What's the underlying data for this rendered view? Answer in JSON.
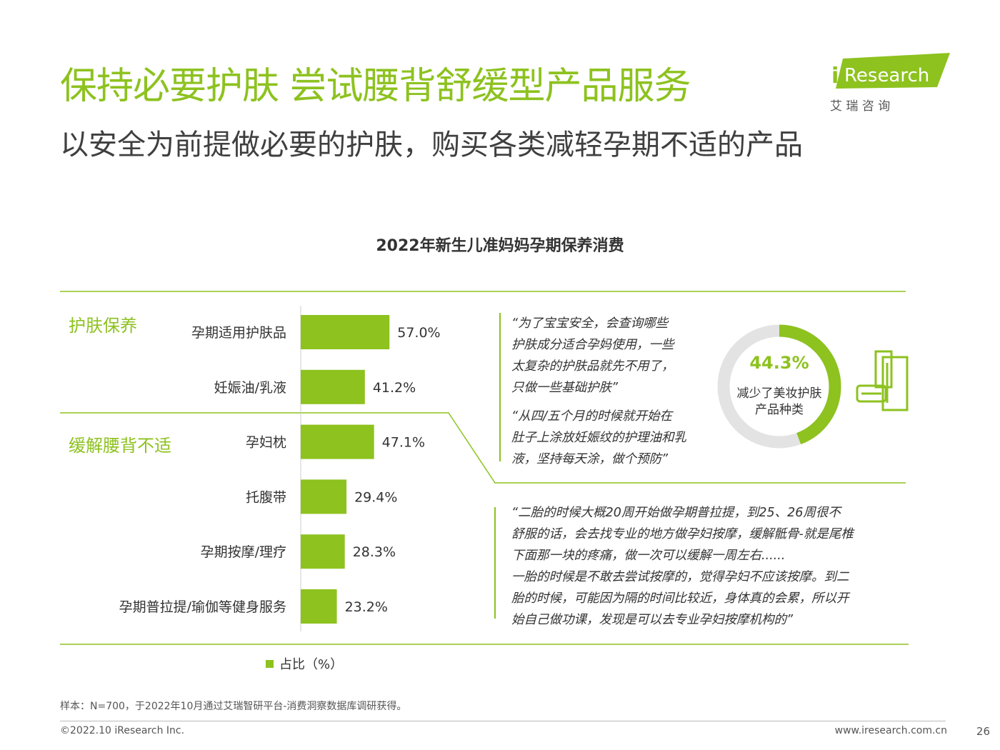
{
  "header": {
    "title": "保持必要护肤 尝试腰背舒缓型产品服务",
    "subtitle": "以安全为前提做必要的护肤，购买各类减轻孕期不适的产品",
    "logo_text": "Research",
    "logo_cn": "艾 瑞 咨 询"
  },
  "chart_data": {
    "type": "bar",
    "orientation": "horizontal",
    "title": "2022年新生儿准妈妈孕期保养消费",
    "groups": [
      {
        "label": "护肤保养",
        "categories": [
          "孕期适用护肤品",
          "妊娠油/乳液"
        ]
      },
      {
        "label": "缓解腰背不适",
        "categories": [
          "孕妇枕",
          "托腹带",
          "孕期按摩/理疗",
          "孕期普拉提/瑜伽等健身服务"
        ]
      }
    ],
    "categories": [
      "孕期适用护肤品",
      "妊娠油/乳液",
      "孕妇枕",
      "托腹带",
      "孕期按摩/理疗",
      "孕期普拉提/瑜伽等健身服务"
    ],
    "series": [
      {
        "name": "占比（%）",
        "values": [
          57.0,
          41.2,
          47.1,
          29.4,
          28.3,
          23.2
        ]
      }
    ],
    "value_labels": [
      "57.0%",
      "41.2%",
      "47.1%",
      "29.4%",
      "28.3%",
      "23.2%"
    ],
    "legend_position": "bottom-left",
    "color": "#8dc21f"
  },
  "donut": {
    "value": 44.3,
    "value_label": "44.3%",
    "label_lines": [
      "减少了美妆护肤",
      "产品种类"
    ],
    "color": "#8dc21f",
    "track_color": "#e3e3e3"
  },
  "quotes": {
    "q1": [
      "“为了宝宝安全，会查询哪些",
      "护肤成分适合孕妈使用，一些",
      "太复杂的护肤品就先不用了，",
      "只做一些基础护肤”"
    ],
    "q2": [
      "“从四/五个月的时候就开始在",
      "肚子上涂放妊娠纹的护理油和乳",
      "液，坚持每天涂，做个预防”"
    ],
    "q3": [
      "“二胎的时候大概20周开始做孕期普拉提，到25、26周很不",
      "舒服的话，会去找专业的地方做孕妇按摩，缓解骶骨-就是尾椎",
      "下面那一块的疼痛，做一次可以缓解一周左右......",
      "一胎的时候是不敢去尝试按摩的，觉得孕妇不应该按摩。到二",
      "胎的时候，可能因为隔的时间比较近，身体真的会累，所以开",
      "始自己做功课，发现是可以去专业孕妇按摩机构的”"
    ]
  },
  "legend": {
    "label": "占比（%）"
  },
  "footer": {
    "note": "样本：N=700，于2022年10月通过艾瑞智研平台-消费洞察数据库调研获得。",
    "copyright": "©2022.10 iResearch Inc.",
    "website": "www.iresearch.com.cn",
    "page": "26"
  },
  "colors": {
    "accent": "#8dc21f",
    "text": "#333333"
  }
}
